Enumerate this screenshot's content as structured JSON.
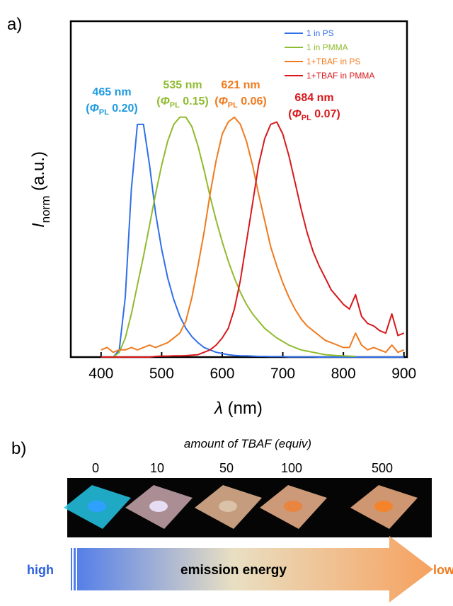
{
  "panel_a_label": "a)",
  "chart_data": {
    "type": "line",
    "x_label": [
      "λ",
      " (nm)"
    ],
    "y_label": [
      "I",
      "norm",
      " (a.u.)"
    ],
    "x": [
      400,
      410,
      420,
      430,
      440,
      450,
      460,
      470,
      480,
      490,
      500,
      510,
      520,
      530,
      540,
      550,
      560,
      570,
      580,
      590,
      600,
      610,
      620,
      630,
      640,
      650,
      660,
      670,
      680,
      690,
      700,
      710,
      720,
      730,
      740,
      750,
      760,
      770,
      780,
      790,
      800,
      810,
      820,
      830,
      840,
      850,
      860,
      870,
      880,
      890,
      900
    ],
    "xlim": [
      350,
      905
    ],
    "xticks": [
      400,
      500,
      600,
      700,
      800,
      900
    ],
    "ylim": [
      0,
      1.4
    ],
    "legend": "upper right",
    "series": [
      {
        "name": "1 in PS",
        "color": "#2f6fe8",
        "values": [
          0,
          0,
          0,
          0.03,
          0.25,
          0.7,
          0.97,
          0.97,
          0.8,
          0.6,
          0.45,
          0.33,
          0.24,
          0.17,
          0.12,
          0.085,
          0.06,
          0.04,
          0.03,
          0.02,
          0.015,
          0.01,
          0.007,
          0.005,
          0.005,
          0.004,
          0.003,
          0.003,
          0.002,
          0.002,
          0.002,
          0.001,
          0.001,
          0.001,
          0.001,
          0.001,
          0,
          0,
          0,
          0,
          0,
          0,
          0,
          0,
          0,
          0,
          0,
          0,
          0,
          0,
          0
        ]
      },
      {
        "name": "1 in PMMA",
        "color": "#8fbb2e",
        "values": [
          0,
          0,
          0,
          0.02,
          0.08,
          0.18,
          0.3,
          0.42,
          0.55,
          0.68,
          0.8,
          0.9,
          0.97,
          1.0,
          1.0,
          0.96,
          0.88,
          0.78,
          0.67,
          0.57,
          0.48,
          0.4,
          0.33,
          0.27,
          0.22,
          0.18,
          0.15,
          0.12,
          0.1,
          0.08,
          0.065,
          0.05,
          0.04,
          0.03,
          0.025,
          0.02,
          0.015,
          0.01,
          0.008,
          0.006,
          0.005,
          0.004,
          0.003,
          null,
          null,
          null,
          null,
          null,
          null,
          null,
          null
        ]
      },
      {
        "name": "1+TBAF in PS",
        "color": "#f07a1e",
        "values": [
          0.03,
          0.04,
          0.02,
          0.03,
          0.03,
          0.04,
          0.03,
          0.04,
          0.05,
          0.04,
          0.05,
          0.06,
          0.08,
          0.1,
          0.15,
          0.25,
          0.38,
          0.52,
          0.68,
          0.82,
          0.93,
          0.98,
          1.0,
          0.97,
          0.9,
          0.8,
          0.68,
          0.57,
          0.46,
          0.38,
          0.31,
          0.25,
          0.2,
          0.16,
          0.13,
          0.11,
          0.09,
          0.07,
          0.06,
          0.05,
          0.04,
          0.04,
          0.1,
          0.05,
          0.03,
          0.04,
          0.03,
          0.02,
          0.05,
          0.02,
          0.03
        ]
      },
      {
        "name": "1+TBAF in PMMA",
        "color": "#d7191c",
        "values": [
          0,
          0,
          0,
          0,
          0,
          0,
          0,
          0,
          0,
          0.003,
          0.004,
          0.004,
          0.005,
          0.005,
          0.006,
          0.008,
          0.01,
          0.02,
          0.03,
          0.05,
          0.08,
          0.12,
          0.2,
          0.32,
          0.48,
          0.64,
          0.8,
          0.91,
          0.97,
          0.98,
          0.93,
          0.84,
          0.73,
          0.62,
          0.52,
          0.44,
          0.38,
          0.33,
          0.28,
          0.25,
          0.22,
          0.2,
          0.26,
          0.17,
          0.14,
          0.13,
          0.11,
          0.1,
          0.18,
          0.09,
          0.1
        ]
      }
    ],
    "annotations": [
      {
        "line1": "465 nm",
        "line2": [
          "(",
          "Φ",
          "PL",
          " 0.20)"
        ],
        "color": "#1f9ae0"
      },
      {
        "line1": "535 nm",
        "line2": [
          "(",
          "Φ",
          "PL",
          " 0.15)"
        ],
        "color": "#8fbb2e"
      },
      {
        "line1": "621 nm",
        "line2": [
          "(",
          "Φ",
          "PL",
          " 0.06)"
        ],
        "color": "#f07a1e"
      },
      {
        "line1": "684 nm",
        "line2": [
          "(",
          "Φ",
          "PL",
          " 0.07)"
        ],
        "color": "#d7191c"
      }
    ]
  },
  "panel_b": {
    "label": "b)",
    "title": "amount of TBAF (equiv)",
    "equiv": [
      0,
      10,
      50,
      100,
      500
    ],
    "arrow_left": "high",
    "arrow_text": "emission energy",
    "arrow_right": "low"
  }
}
